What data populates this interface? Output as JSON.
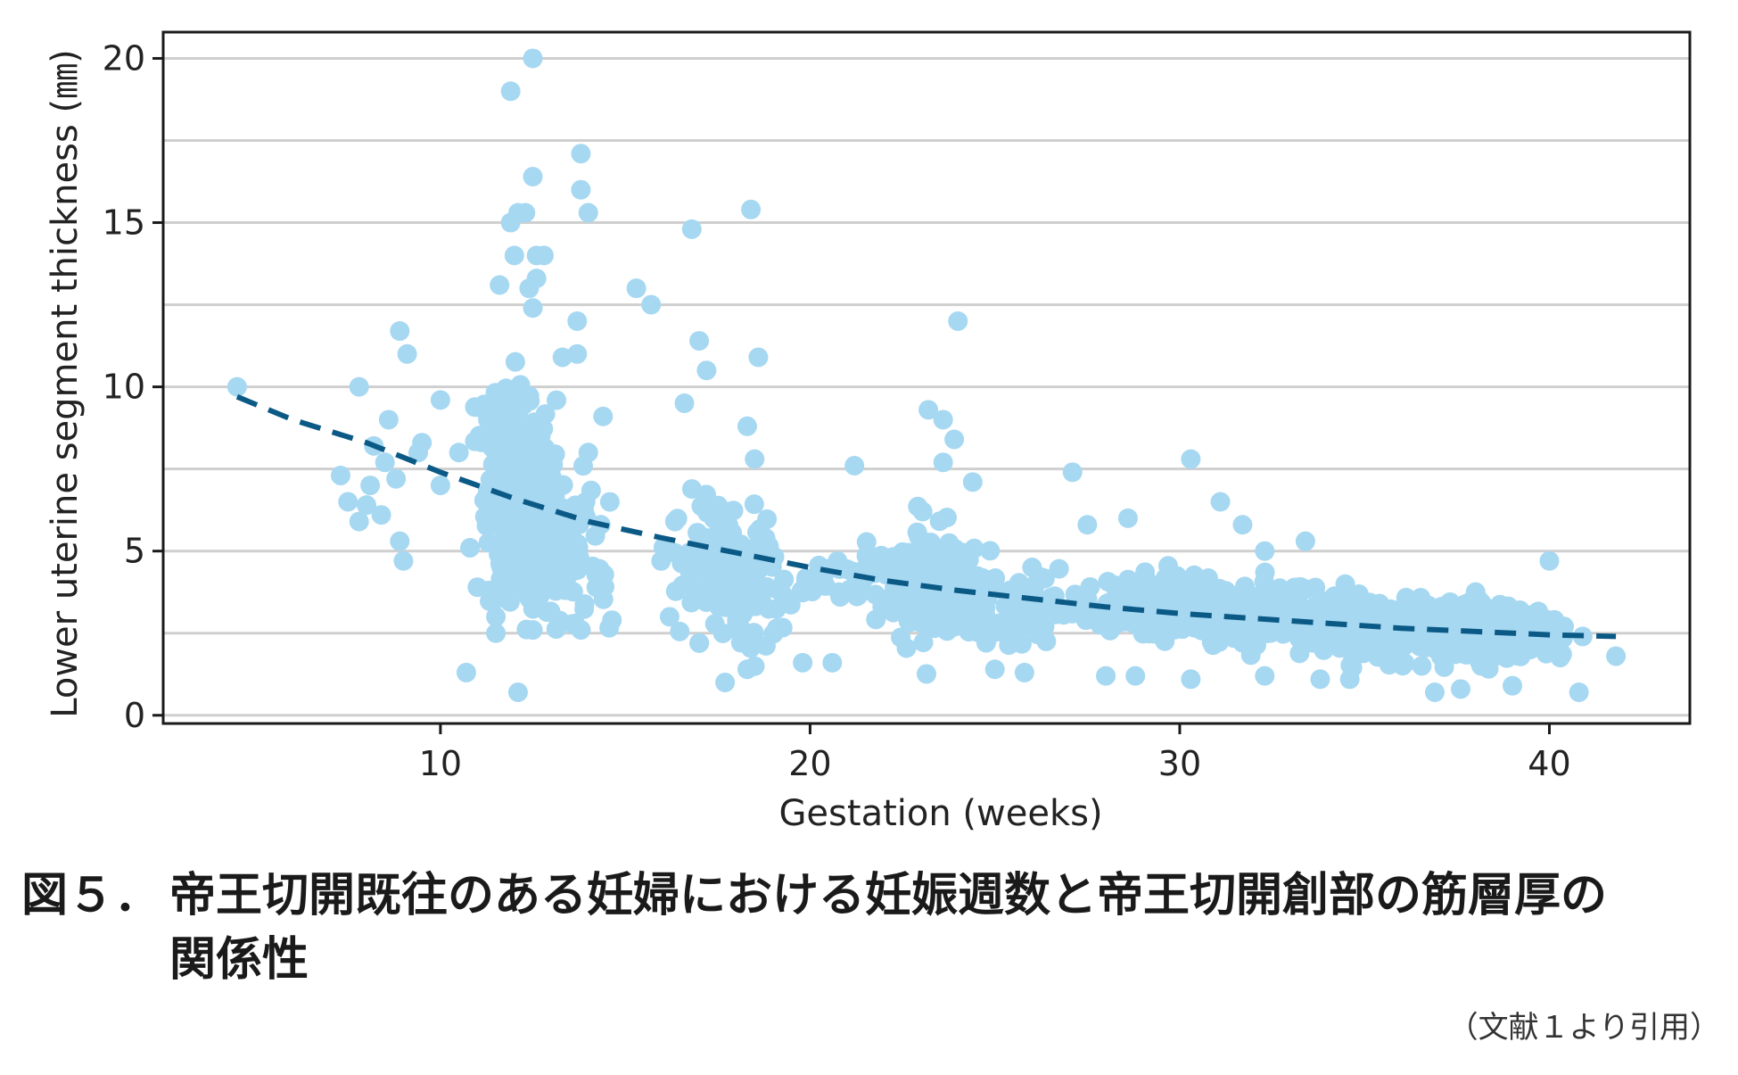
{
  "chart_data": {
    "type": "scatter",
    "xlabel": "Gestation (weeks)",
    "ylabel": "Lower uterine segment thickness (㎜)",
    "xlim": [
      2.5,
      43.8
    ],
    "ylim": [
      -0.25,
      20.8
    ],
    "x_ticks": [
      10,
      20,
      30,
      40
    ],
    "y_ticks": [
      0,
      5,
      10,
      15,
      20
    ],
    "grid": "horizontal",
    "point_color": "#a6d8f2",
    "trend_color": "#0b5a86",
    "points": [
      [
        4.5,
        10
      ],
      [
        7.3,
        7.3
      ],
      [
        7.5,
        6.5
      ],
      [
        7.8,
        10
      ],
      [
        7.8,
        5.9
      ],
      [
        8.0,
        6.4
      ],
      [
        8.1,
        7.0
      ],
      [
        8.2,
        8.2
      ],
      [
        8.4,
        6.1
      ],
      [
        8.5,
        7.7
      ],
      [
        8.6,
        9.0
      ],
      [
        8.8,
        7.2
      ],
      [
        8.9,
        11.7
      ],
      [
        8.9,
        5.3
      ],
      [
        9.0,
        4.7
      ],
      [
        9.1,
        11.0
      ],
      [
        9.4,
        8.0
      ],
      [
        9.5,
        8.3
      ],
      [
        10.0,
        9.6
      ],
      [
        10.0,
        7.0
      ],
      [
        10.5,
        8.0
      ],
      [
        10.7,
        1.3
      ],
      [
        10.8,
        5.1
      ],
      [
        11.0,
        3.9
      ],
      [
        11.3,
        3.8
      ],
      [
        11.5,
        2.5
      ],
      [
        11.5,
        3.0
      ],
      [
        11.6,
        13.1
      ],
      [
        11.9,
        19.0
      ],
      [
        11.9,
        15.0
      ],
      [
        12.0,
        14.0
      ],
      [
        12.1,
        15.3
      ],
      [
        12.1,
        0.7
      ],
      [
        12.3,
        15.3
      ],
      [
        12.4,
        13.0
      ],
      [
        12.5,
        20.0
      ],
      [
        12.5,
        16.4
      ],
      [
        12.5,
        12.4
      ],
      [
        12.6,
        13.3
      ],
      [
        12.6,
        14.0
      ],
      [
        12.8,
        14.0
      ],
      [
        12.5,
        2.6
      ],
      [
        13.3,
        10.9
      ],
      [
        13.7,
        12.0
      ],
      [
        13.7,
        11.0
      ],
      [
        13.8,
        17.1
      ],
      [
        13.8,
        16.0
      ],
      [
        13.8,
        2.6
      ],
      [
        14.0,
        15.3
      ],
      [
        14.0,
        8.0
      ],
      [
        14.4,
        9.1
      ],
      [
        15.3,
        13.0
      ],
      [
        15.7,
        12.5
      ],
      [
        16.2,
        3.0
      ],
      [
        16.6,
        9.5
      ],
      [
        16.8,
        14.8
      ],
      [
        17.0,
        11.4
      ],
      [
        17.2,
        10.5
      ],
      [
        17.0,
        2.2
      ],
      [
        17.7,
        1.0
      ],
      [
        18.3,
        8.8
      ],
      [
        18.4,
        15.4
      ],
      [
        18.3,
        1.4
      ],
      [
        18.6,
        10.9
      ],
      [
        18.5,
        7.8
      ],
      [
        19.8,
        1.6
      ],
      [
        20.6,
        1.6
      ],
      [
        21.2,
        7.6
      ],
      [
        23.2,
        9.3
      ],
      [
        23.6,
        9.0
      ],
      [
        23.6,
        7.7
      ],
      [
        23.9,
        8.4
      ],
      [
        24.0,
        12.0
      ],
      [
        24.4,
        7.1
      ],
      [
        25.0,
        1.4
      ],
      [
        25.8,
        1.3
      ],
      [
        27.1,
        7.4
      ],
      [
        27.5,
        5.8
      ],
      [
        28.0,
        1.2
      ],
      [
        28.6,
        6.0
      ],
      [
        28.8,
        1.2
      ],
      [
        30.3,
        7.8
      ],
      [
        30.3,
        1.1
      ],
      [
        31.1,
        6.5
      ],
      [
        31.7,
        5.8
      ],
      [
        32.3,
        1.2
      ],
      [
        32.3,
        5.0
      ],
      [
        33.4,
        5.3
      ],
      [
        33.8,
        1.1
      ],
      [
        34.6,
        1.1
      ],
      [
        36.9,
        0.7
      ],
      [
        37.6,
        0.8
      ],
      [
        39.0,
        0.9
      ],
      [
        40.0,
        4.7
      ],
      [
        40.8,
        0.7
      ],
      [
        40.9,
        2.4
      ],
      [
        41.8,
        1.8
      ]
    ],
    "clusters": [
      {
        "x": 12.3,
        "y": 6.2,
        "sx": 0.7,
        "sy": 2.0,
        "n": 300
      },
      {
        "x": 13.6,
        "y": 5.2,
        "sx": 0.7,
        "sy": 1.6,
        "n": 70
      },
      {
        "x": 11.5,
        "y": 8.6,
        "sx": 0.5,
        "sy": 1.2,
        "n": 40
      },
      {
        "x": 17.5,
        "y": 4.6,
        "sx": 0.9,
        "sy": 1.4,
        "n": 110
      },
      {
        "x": 18.9,
        "y": 4.0,
        "sx": 0.8,
        "sy": 1.2,
        "n": 50
      },
      {
        "x": 21.3,
        "y": 4.2,
        "sx": 0.7,
        "sy": 0.8,
        "n": 30
      },
      {
        "x": 23.3,
        "y": 3.8,
        "sx": 0.9,
        "sy": 1.2,
        "n": 220
      },
      {
        "x": 25.5,
        "y": 3.4,
        "sx": 1.2,
        "sy": 0.9,
        "n": 80
      },
      {
        "x": 29.5,
        "y": 3.3,
        "sx": 1.5,
        "sy": 0.7,
        "n": 170
      },
      {
        "x": 32.3,
        "y": 3.0,
        "sx": 1.4,
        "sy": 0.6,
        "n": 170
      },
      {
        "x": 35.3,
        "y": 2.7,
        "sx": 1.3,
        "sy": 0.65,
        "n": 250
      },
      {
        "x": 38.2,
        "y": 2.5,
        "sx": 1.3,
        "sy": 0.65,
        "n": 270
      }
    ],
    "trend": [
      [
        4.5,
        9.7
      ],
      [
        6,
        9.0
      ],
      [
        8,
        8.3
      ],
      [
        10,
        7.4
      ],
      [
        12,
        6.6
      ],
      [
        14,
        5.9
      ],
      [
        16,
        5.4
      ],
      [
        18,
        4.95
      ],
      [
        20,
        4.5
      ],
      [
        22,
        4.1
      ],
      [
        24,
        3.8
      ],
      [
        26,
        3.55
      ],
      [
        28,
        3.3
      ],
      [
        30,
        3.1
      ],
      [
        32,
        2.95
      ],
      [
        34,
        2.8
      ],
      [
        36,
        2.65
      ],
      [
        38,
        2.55
      ],
      [
        40,
        2.45
      ],
      [
        41.8,
        2.4
      ]
    ]
  },
  "caption": {
    "label": "図５．",
    "text_line1": "帝王切開既往のある妊婦における妊娠週数と帝王切開創部の筋層厚の",
    "text_line2": "関係性"
  },
  "source": "（文献１より引用）"
}
